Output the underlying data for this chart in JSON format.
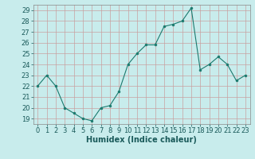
{
  "x": [
    0,
    1,
    2,
    3,
    4,
    5,
    6,
    7,
    8,
    9,
    10,
    11,
    12,
    13,
    14,
    15,
    16,
    17,
    18,
    19,
    20,
    21,
    22,
    23
  ],
  "y": [
    22.0,
    23.0,
    22.0,
    20.0,
    19.5,
    19.0,
    18.8,
    20.0,
    20.2,
    21.5,
    24.0,
    25.0,
    25.8,
    25.8,
    27.5,
    27.7,
    28.0,
    29.2,
    23.5,
    24.0,
    24.7,
    24.0,
    22.5,
    23.0
  ],
  "xlabel": "Humidex (Indice chaleur)",
  "ylim": [
    18.5,
    29.5
  ],
  "xlim": [
    -0.5,
    23.5
  ],
  "yticks": [
    19,
    20,
    21,
    22,
    23,
    24,
    25,
    26,
    27,
    28,
    29
  ],
  "xticks": [
    0,
    1,
    2,
    3,
    4,
    5,
    6,
    7,
    8,
    9,
    10,
    11,
    12,
    13,
    14,
    15,
    16,
    17,
    18,
    19,
    20,
    21,
    22,
    23
  ],
  "line_color": "#1a7a6e",
  "marker_color": "#1a7a6e",
  "bg_color": "#c8ecec",
  "grid_color": "#c8a0a0",
  "fig_bg": "#c8ecec",
  "tick_fontsize": 6,
  "xlabel_fontsize": 7,
  "spine_color": "#888888"
}
